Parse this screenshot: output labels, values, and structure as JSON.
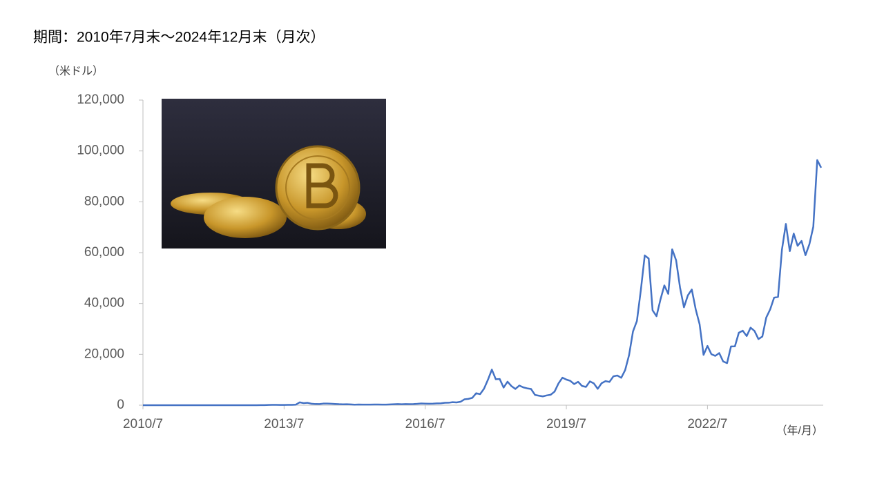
{
  "chart_data": {
    "type": "line",
    "title": "期間：2010年7月末～2024年12月末（月次）",
    "y_label": "（米ドル）",
    "x_label": "（年/月）",
    "categories": [
      "2010/7",
      null,
      null,
      null,
      null,
      null,
      null,
      null,
      null,
      null,
      null,
      null,
      null,
      null,
      null,
      null,
      null,
      null,
      null,
      null,
      null,
      null,
      null,
      null,
      null,
      null,
      null,
      null,
      null,
      null,
      null,
      null,
      null,
      null,
      null,
      null,
      "2013/7",
      null,
      null,
      null,
      null,
      null,
      null,
      null,
      null,
      null,
      null,
      null,
      null,
      null,
      null,
      null,
      null,
      null,
      null,
      null,
      null,
      null,
      null,
      null,
      null,
      null,
      null,
      null,
      null,
      null,
      null,
      null,
      null,
      null,
      null,
      null,
      "2016/7",
      null,
      null,
      null,
      null,
      null,
      null,
      null,
      null,
      null,
      null,
      null,
      null,
      null,
      null,
      null,
      null,
      null,
      null,
      null,
      null,
      null,
      null,
      null,
      null,
      null,
      null,
      null,
      null,
      null,
      null,
      null,
      null,
      null,
      null,
      null,
      "2019/7",
      null,
      null,
      null,
      null,
      null,
      null,
      null,
      null,
      null,
      null,
      null,
      null,
      null,
      null,
      null,
      null,
      null,
      null,
      null,
      null,
      null,
      null,
      null,
      null,
      null,
      null,
      null,
      null,
      null,
      null,
      null,
      null,
      null,
      null,
      null,
      "2022/7",
      null,
      null,
      null,
      null,
      null,
      null,
      null,
      null,
      null,
      null,
      null,
      null,
      null,
      null,
      null,
      null,
      null,
      null,
      null,
      null,
      null,
      null,
      null,
      null,
      null,
      null,
      null,
      null,
      null
    ],
    "series": [
      {
        "color": "#4472c4",
        "values": [
          0.07,
          0.06,
          0.06,
          0.2,
          0.2,
          0.3,
          0.5,
          0.9,
          0.8,
          3.5,
          8.7,
          16,
          13,
          8,
          5,
          3.3,
          3,
          4.7,
          5.5,
          4.9,
          4.9,
          5,
          5.2,
          6.7,
          9.3,
          10,
          12.4,
          11.2,
          12.6,
          13.5,
          20,
          33,
          93,
          139,
          129,
          97,
          106,
          135,
          133,
          205,
          1130,
          805,
          940,
          573,
          460,
          448,
          630,
          640,
          585,
          480,
          390,
          338,
          378,
          320,
          217,
          254,
          244,
          236,
          230,
          263,
          284,
          230,
          236,
          314,
          377,
          430,
          368,
          437,
          416,
          448,
          531,
          673,
          624,
          575,
          609,
          701,
          745,
          964,
          970,
          1190,
          1080,
          1350,
          2300,
          2480,
          2880,
          4700,
          4340,
          6470,
          10000,
          14000,
          10200,
          10300,
          6930,
          9240,
          7500,
          6400,
          7730,
          7030,
          6630,
          6370,
          4040,
          3740,
          3460,
          3850,
          4100,
          5350,
          8570,
          10820,
          10080,
          9600,
          8290,
          9200,
          7570,
          7190,
          9350,
          8600,
          6440,
          8660,
          9460,
          9140,
          11350,
          11680,
          10780,
          13800,
          19700,
          29000,
          33100,
          45200,
          58900,
          57700,
          37300,
          35000,
          41500,
          47100,
          43800,
          61300,
          57000,
          46300,
          38500,
          43200,
          45500,
          37700,
          31800,
          19800,
          23300,
          20050,
          19400,
          20500,
          17200,
          16550,
          23100,
          23150,
          28500,
          29300,
          27200,
          30500,
          29200,
          26000,
          27000,
          34500,
          37700,
          42300,
          42600,
          61200,
          71300,
          60600,
          67500,
          62700,
          64600,
          59000,
          63300,
          70200,
          96400,
          93400
        ]
      }
    ],
    "ylim": [
      0,
      120000
    ],
    "yticks": [
      0,
      {
        "value": 20000,
        "label": "20,000"
      },
      {
        "value": 40000,
        "label": "40,000"
      },
      {
        "value": 60000,
        "label": "60,000"
      },
      {
        "value": 80000,
        "label": "80,000"
      },
      {
        "value": 100000,
        "label": "100,000"
      },
      {
        "value": 120000,
        "label": "120,000"
      }
    ],
    "grid": false
  }
}
